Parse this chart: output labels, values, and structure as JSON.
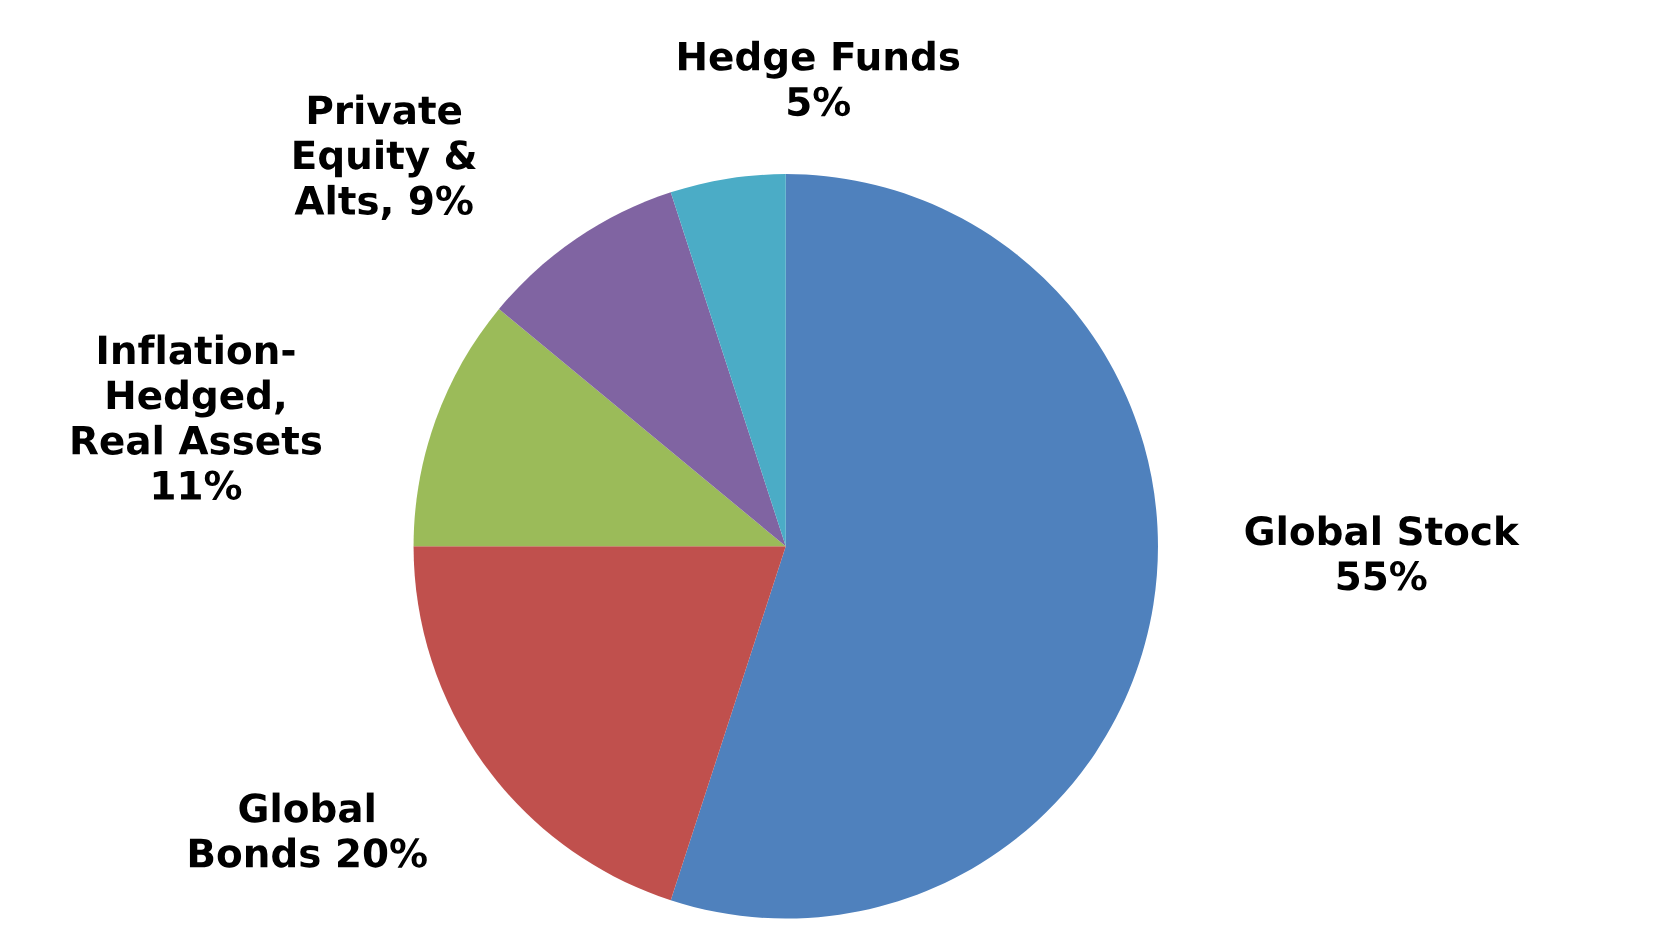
{
  "chart_data": {
    "type": "pie",
    "categories": [
      "Global Stock",
      "Global\nBonds",
      "Inflation-\nHedged,\nReal Assets",
      "Private\nEquity &\nAlts",
      "Hedge Funds"
    ],
    "values": [
      55,
      20,
      11,
      9,
      5
    ],
    "value_labels": [
      "55%",
      "20%",
      "11%",
      "9%",
      "5%"
    ],
    "colors": [
      "#4f81bd",
      "#c0504d",
      "#9bbb59",
      "#8064a2",
      "#4bacc6"
    ],
    "legend": false
  }
}
